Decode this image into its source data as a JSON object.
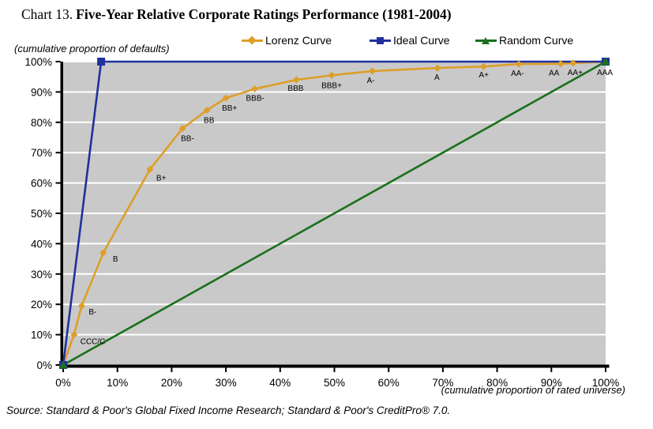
{
  "title": {
    "prefix": "Chart 13.",
    "main": "Five-Year Relative Corporate Ratings Performance (1981-2004)"
  },
  "source": "Source: Standard & Poor's Global Fixed Income Research; Standard & Poor's CreditPro® 7.0.",
  "colors": {
    "plot_bg": "#C9C9C9",
    "gridline": "#FFFFFF",
    "axis": "#000000",
    "lorenz": "#DD9F28",
    "ideal": "#20309E",
    "random": "#1A701C"
  },
  "chart_data": {
    "type": "line",
    "title": "Five-Year Relative Corporate Ratings Performance (1981-2004)",
    "x_axis_label": "(cumulative proportion of rated universe)",
    "y_axis_label": "(cumulative proportion of defaults)",
    "xlim": [
      0,
      100
    ],
    "ylim": [
      0,
      100
    ],
    "x_ticks": [
      "0%",
      "10%",
      "20%",
      "30%",
      "40%",
      "50%",
      "60%",
      "70%",
      "80%",
      "90%",
      "100%"
    ],
    "y_ticks": [
      "0%",
      "10%",
      "20%",
      "30%",
      "40%",
      "50%",
      "60%",
      "70%",
      "80%",
      "90%",
      "100%"
    ],
    "grid": "horizontal white gridlines every 10% on gray plot area",
    "legend_position": "top",
    "series": [
      {
        "name": "Lorenz Curve",
        "marker": "diamond",
        "color": "#DD9F28",
        "points": [
          {
            "x": 0,
            "y": 0
          },
          {
            "x": 2,
            "y": 10,
            "label": "CCC/C",
            "label_offset": [
              8,
              12
            ]
          },
          {
            "x": 3.4,
            "y": 19.5,
            "label": "B-",
            "label_offset": [
              9,
              11
            ]
          },
          {
            "x": 7.4,
            "y": 37,
            "label": "B",
            "label_offset": [
              12,
              11
            ]
          },
          {
            "x": 16,
            "y": 64.5,
            "label": "B+",
            "label_offset": [
              8,
              14
            ]
          },
          {
            "x": 22,
            "y": 78,
            "label": "BB-",
            "label_offset": [
              -2,
              16
            ]
          },
          {
            "x": 26.5,
            "y": 84,
            "label": "BB",
            "label_offset": [
              -4,
              16
            ]
          },
          {
            "x": 30,
            "y": 88,
            "label": "BB+",
            "label_offset": [
              -5,
              16
            ]
          },
          {
            "x": 35.3,
            "y": 91,
            "label": "BBB-",
            "label_offset": [
              -11,
              15
            ]
          },
          {
            "x": 43,
            "y": 94,
            "label": "BBB",
            "label_offset": [
              -11,
              14
            ]
          },
          {
            "x": 49.5,
            "y": 95.5,
            "label": "BBB+",
            "label_offset": [
              -13,
              16
            ]
          },
          {
            "x": 57,
            "y": 96.9,
            "label": "A-",
            "label_offset": [
              -7,
              15
            ]
          },
          {
            "x": 69,
            "y": 97.9,
            "label": "A",
            "label_offset": [
              -4,
              15
            ]
          },
          {
            "x": 77.5,
            "y": 98.4,
            "label": "A+",
            "label_offset": [
              -6,
              14
            ]
          },
          {
            "x": 84,
            "y": 99.2,
            "label": "AA-",
            "label_offset": [
              -10,
              15
            ]
          },
          {
            "x": 91.7,
            "y": 99.3,
            "label": "AA",
            "label_offset": [
              -15,
              15
            ]
          },
          {
            "x": 94,
            "y": 99.5,
            "label": "AA+",
            "label_offset": [
              -7,
              15
            ]
          },
          {
            "x": 100,
            "y": 100,
            "label": "AAA",
            "label_offset": [
              -11,
              17
            ]
          }
        ]
      },
      {
        "name": "Ideal Curve",
        "marker": "square",
        "color": "#20309E",
        "points": [
          {
            "x": 0,
            "y": 0
          },
          {
            "x": 7,
            "y": 100
          },
          {
            "x": 100,
            "y": 100
          }
        ]
      },
      {
        "name": "Random Curve",
        "marker": "triangle",
        "color": "#1A701C",
        "points": [
          {
            "x": 0,
            "y": 0
          },
          {
            "x": 100,
            "y": 100
          }
        ]
      }
    ]
  }
}
